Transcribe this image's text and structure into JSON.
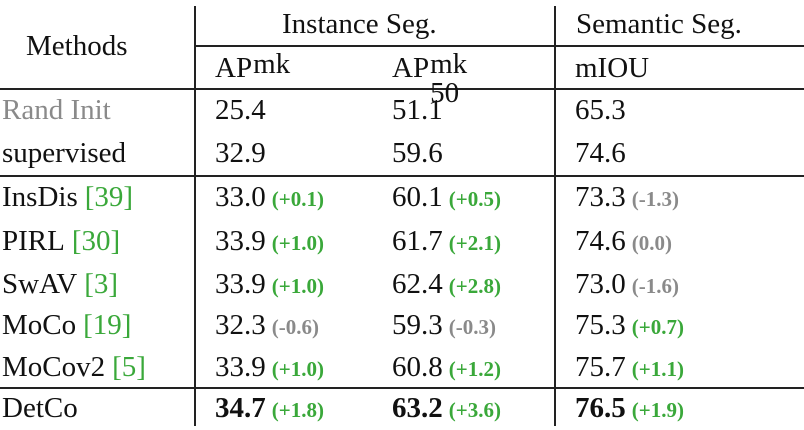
{
  "table": {
    "header": {
      "methods": "Methods",
      "groups": [
        "Instance Seg.",
        "Semantic Seg."
      ],
      "columns": [
        {
          "base": "AP",
          "sup": "mk"
        },
        {
          "base": "AP",
          "sup": "mk",
          "sub": "50"
        },
        {
          "base": "mIOU"
        }
      ]
    },
    "rows": [
      {
        "method": "Rand Init",
        "muted": true,
        "cells": [
          {
            "value": "25.4"
          },
          {
            "value": "51.1"
          },
          {
            "value": "65.3"
          }
        ]
      },
      {
        "method": "supervised",
        "cells": [
          {
            "value": "32.9"
          },
          {
            "value": "59.6"
          },
          {
            "value": "74.6"
          }
        ]
      },
      {
        "method": "InsDis",
        "ref": "[39]",
        "cells": [
          {
            "value": "33.0",
            "delta": "(+0.1)"
          },
          {
            "value": "60.1",
            "delta": "(+0.5)"
          },
          {
            "value": "73.3",
            "delta": "(-1.3)"
          }
        ]
      },
      {
        "method": "PIRL",
        "ref": "[30]",
        "cells": [
          {
            "value": "33.9",
            "delta": "(+1.0)"
          },
          {
            "value": "61.7",
            "delta": "(+2.1)"
          },
          {
            "value": "74.6",
            "delta": "(0.0)"
          }
        ]
      },
      {
        "method": "SwAV",
        "ref": "[3]",
        "cells": [
          {
            "value": "33.9",
            "delta": "(+1.0)"
          },
          {
            "value": "62.4",
            "delta": "(+2.8)"
          },
          {
            "value": "73.0",
            "delta": "(-1.6)"
          }
        ]
      },
      {
        "method": "MoCo",
        "ref": "[19]",
        "cells": [
          {
            "value": "32.3",
            "delta": "(-0.6)"
          },
          {
            "value": "59.3",
            "delta": "(-0.3)"
          },
          {
            "value": "75.3",
            "delta": "(+0.7)"
          }
        ]
      },
      {
        "method": "MoCov2",
        "ref": "[5]",
        "cells": [
          {
            "value": "33.9",
            "delta": "(+1.0)"
          },
          {
            "value": "60.8",
            "delta": "(+1.2)"
          },
          {
            "value": "75.7",
            "delta": "(+1.1)"
          }
        ]
      },
      {
        "method": "DetCo",
        "bold": true,
        "cells": [
          {
            "value": "34.7",
            "delta": "(+1.8)"
          },
          {
            "value": "63.2",
            "delta": "(+3.6)"
          },
          {
            "value": "76.5",
            "delta": "(+1.9)"
          }
        ]
      }
    ]
  }
}
